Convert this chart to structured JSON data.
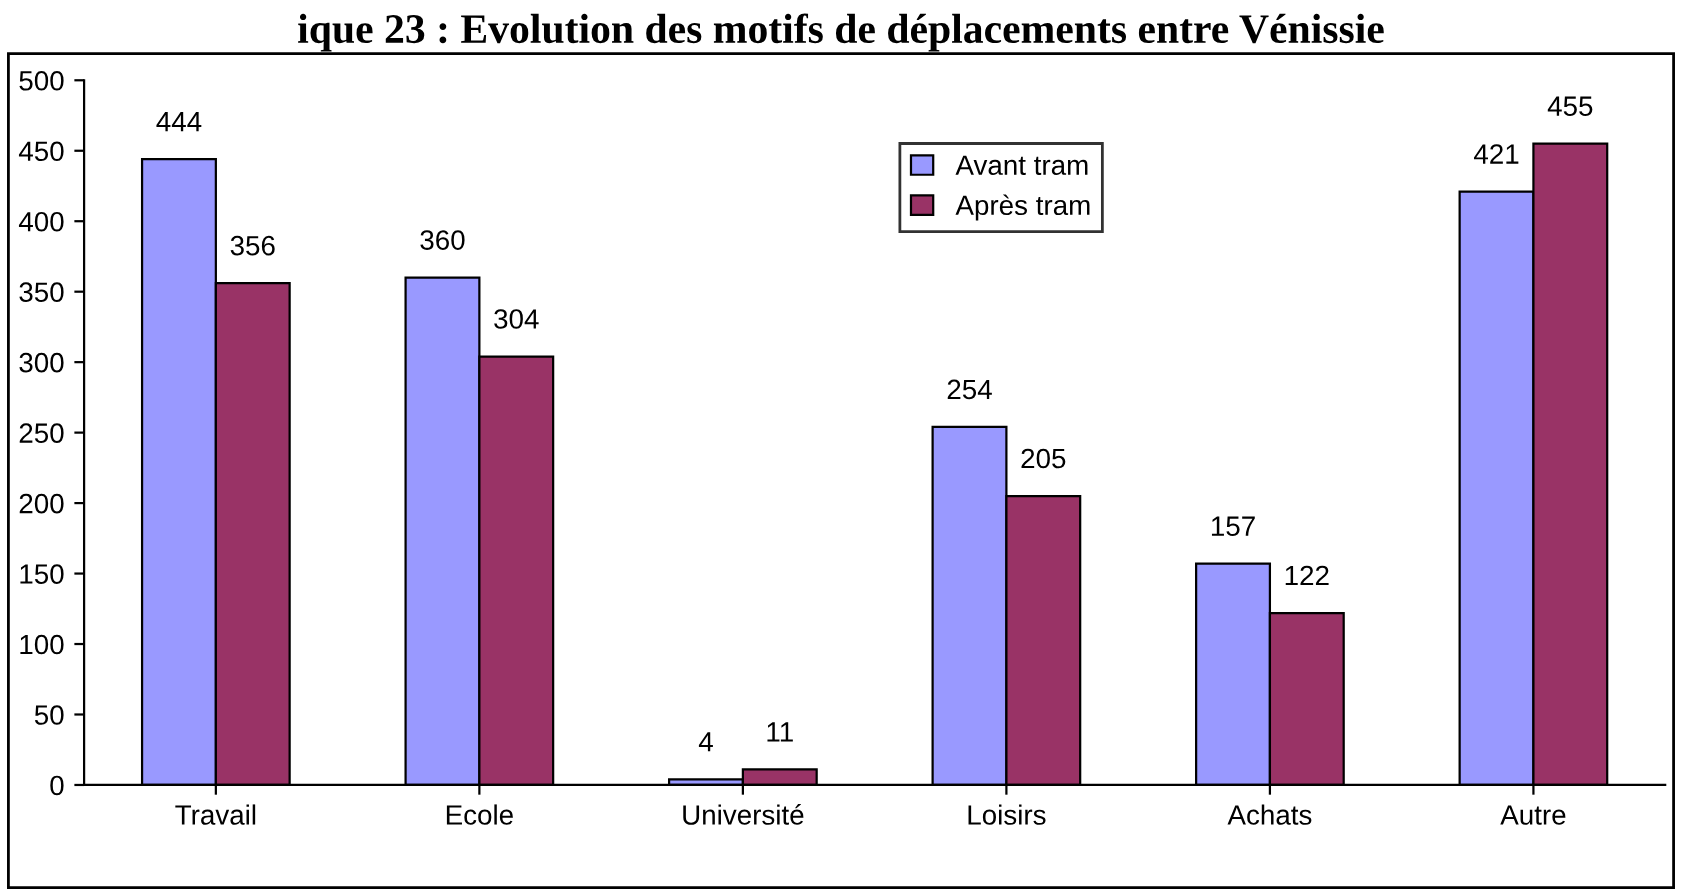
{
  "chart_data": {
    "type": "bar",
    "title": "ique 23 : Evolution des motifs de déplacements entre Vénissie",
    "categories": [
      "Travail",
      "Ecole",
      "Université",
      "Loisirs",
      "Achats",
      "Autre"
    ],
    "series": [
      {
        "name": "Avant tram",
        "color": "#9999ff",
        "values": [
          444,
          360,
          4,
          254,
          157,
          421
        ]
      },
      {
        "name": "Après tram",
        "color": "#993366",
        "values": [
          356,
          304,
          11,
          205,
          122,
          455
        ]
      }
    ],
    "ylim": [
      0,
      500
    ],
    "yticks": [
      0,
      50,
      100,
      150,
      200,
      250,
      300,
      350,
      400,
      450,
      500
    ],
    "data_labels": true,
    "legend": "top center",
    "grid": false
  }
}
